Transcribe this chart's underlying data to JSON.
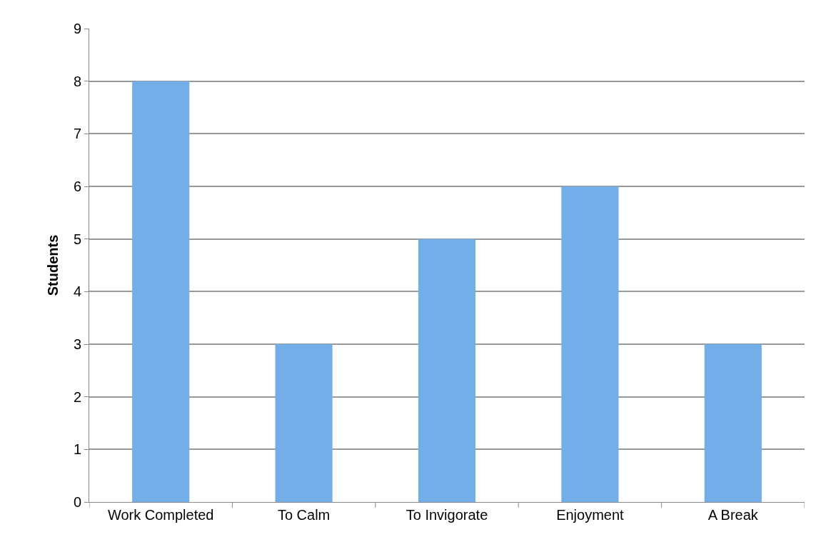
{
  "chart_data": {
    "type": "bar",
    "ylabel": "Students",
    "categories": [
      "Work Completed",
      "To Calm",
      "To Invigorate",
      "Enjoyment",
      "A Break"
    ],
    "values": [
      8,
      3,
      5,
      6,
      3
    ],
    "color": "#74aee9",
    "ylim": [
      0,
      9
    ],
    "yticks": [
      0,
      1,
      2,
      3,
      4,
      5,
      6,
      7,
      8,
      9
    ],
    "grid": "y"
  }
}
